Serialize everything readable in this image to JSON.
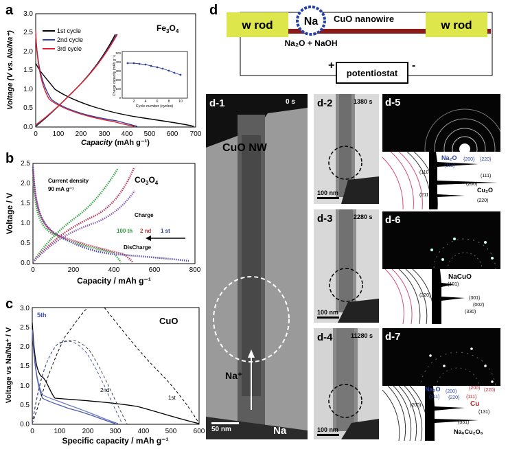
{
  "panels": {
    "a": "a",
    "b": "b",
    "c": "c",
    "d": "d"
  },
  "panel_a": {
    "compound": "Fe",
    "compound_sub": "3",
    "compound2": "O",
    "compound_sub2": "4",
    "ylabel": "Voltage (V vs. Na/Na⁺)",
    "xlabel_prefix": "Capacity",
    "xlabel_unit": "(mAh g⁻¹)",
    "legend": [
      "1st cycle",
      "2nd cycle",
      "3rd cycle"
    ],
    "xticks": [
      "0",
      "100",
      "200",
      "300",
      "400",
      "500",
      "600",
      "700"
    ],
    "yticks": [
      "0.0",
      "0.5",
      "1.0",
      "1.5",
      "2.0",
      "2.5",
      "3.0"
    ],
    "inset": {
      "ylabel": "Charge capacity (mAh g⁻¹)",
      "xlabel": "Cycle number (cycles)",
      "xticks": [
        "2",
        "4",
        "6",
        "8",
        "10"
      ],
      "yticks": [
        "0",
        "100",
        "200",
        "300",
        "400",
        "500"
      ]
    }
  },
  "panel_b": {
    "compound": "Co",
    "compound_sub": "3",
    "compound2": "O",
    "compound_sub2": "4",
    "note1": "Current density",
    "note2": "90 mA g⁻¹",
    "charge": "Charge",
    "discharge": "DisCharge",
    "cycles": [
      "100 th",
      "2 nd",
      "1 st"
    ],
    "ylabel": "Voltage / V",
    "xlabel": "Capacity / mAh g⁻¹",
    "xticks": [
      "0",
      "200",
      "400",
      "600",
      "800"
    ],
    "yticks": [
      "0.0",
      "0.5",
      "1.0",
      "1.5",
      "2.0",
      "2.5"
    ]
  },
  "panel_c": {
    "compound": "CuO",
    "ylabel": "Voltage vs Na/Na⁺ / V",
    "xlabel": "Specific capacity / mAh g⁻¹",
    "xticks": [
      "0",
      "100",
      "200",
      "300",
      "400",
      "500",
      "600"
    ],
    "yticks": [
      "0.0",
      "0.5",
      "1.0",
      "1.5",
      "2.0",
      "2.5",
      "3.0"
    ],
    "cycle_labels": [
      "5th",
      "2nd",
      "1st"
    ]
  },
  "schematic": {
    "rod_left": "w rod",
    "rod_right": "w rod",
    "na": "Na",
    "wire": "CuO nanowire",
    "na2o": "Na₂O + NaOH",
    "potentiostat": "potentiostat",
    "plus": "+",
    "minus": "-"
  },
  "tem": {
    "d1": {
      "label": "d-1",
      "time": "0 s",
      "nw": "CuO NW",
      "na_ion": "Na⁺",
      "na": "Na",
      "scale": "50 nm"
    },
    "d2": {
      "label": "d-2",
      "time": "1380 s",
      "scale": "100 nm"
    },
    "d3": {
      "label": "d-3",
      "time": "2280 s",
      "scale": "100 nm"
    },
    "d4": {
      "label": "d-4",
      "time": "11280 s",
      "scale": "100 nm"
    }
  },
  "sad": {
    "d5": {
      "label": "d-5",
      "phase1": "Na₂O",
      "p1r": [
        "{111}",
        "{200}",
        "{220}"
      ],
      "rings": [
        "(110)",
        "(111)",
        "(200)",
        "(211)",
        "(220)"
      ],
      "phase2": "Cu₂O"
    },
    "d6": {
      "label": "d-6",
      "phase": "NaCuO",
      "rings": [
        "(101)",
        "(220)",
        "(301)",
        "(002)",
        "(330)"
      ]
    },
    "d7": {
      "label": "d-7",
      "na2o": "Na₂O",
      "na2o_rings": [
        "(200)",
        "{111}",
        "{220}"
      ],
      "cu": "Cu",
      "cu_rings": [
        "{200}",
        "(220)",
        "{111}"
      ],
      "rings": [
        "(200)",
        "(131)",
        "(331)"
      ],
      "phase": "Na₆Cu₂O₆"
    }
  }
}
